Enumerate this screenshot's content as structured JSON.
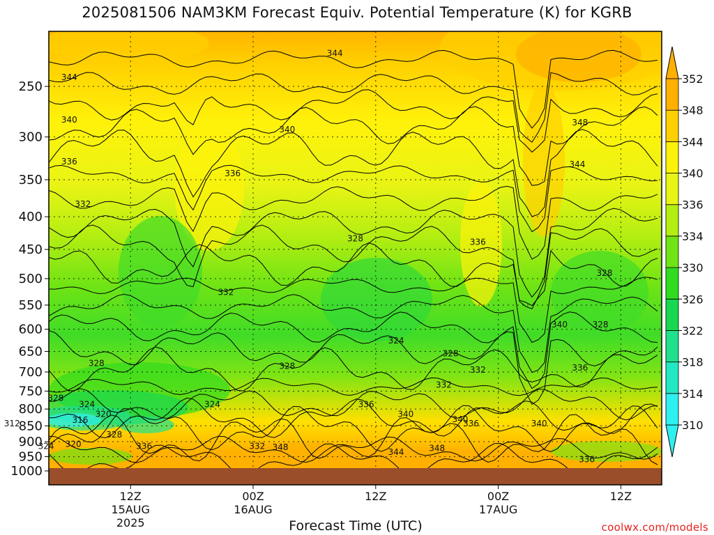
{
  "title": "2025081506 NAM3KM Forecast Equiv. Potential Temperature (K) for KGRB",
  "credit": "coolwx.com/models",
  "chart_data": {
    "type": "heatmap",
    "title": "2025081506 NAM3KM Forecast Equiv. Potential Temperature (K) for KGRB",
    "xlabel": "Forecast Time (UTC)",
    "ylabel": "",
    "variable": "Equiv. Potential Temperature (K)",
    "station": "KGRB",
    "model": "NAM3KM",
    "init": "2025081506",
    "y_scale": "log",
    "ylim": [
      1000,
      200
    ],
    "grid": true,
    "y_ticks": [
      250,
      300,
      350,
      400,
      450,
      500,
      550,
      600,
      650,
      700,
      750,
      800,
      850,
      900,
      950,
      1000
    ],
    "x_hours": [
      6,
      51
    ],
    "x_ticks": [
      {
        "hour": 12,
        "labels": [
          "12Z",
          "15AUG",
          "2025"
        ]
      },
      {
        "hour": 21,
        "labels": [
          "00Z",
          "16AUG"
        ]
      },
      {
        "hour": 30,
        "labels": [
          "12Z"
        ]
      },
      {
        "hour": 39,
        "labels": [
          "00Z",
          "17AUG"
        ]
      },
      {
        "hour": 48,
        "labels": [
          "12Z"
        ]
      }
    ],
    "colorbar": {
      "levels": [
        310,
        314,
        318,
        322,
        326,
        330,
        334,
        336,
        340,
        344,
        348,
        352
      ],
      "colors": [
        "#2ff0f0",
        "#22e8c4",
        "#20e08c",
        "#18d850",
        "#30dc20",
        "#70e414",
        "#b4ee12",
        "#e8f414",
        "#fff20a",
        "#ffd000",
        "#ffb000"
      ]
    },
    "contour_labels": [
      {
        "text": "344",
        "hour": 27.0,
        "hpa": 222
      },
      {
        "text": "344",
        "hour": 7.5,
        "hpa": 242
      },
      {
        "text": "340",
        "hour": 7.5,
        "hpa": 282
      },
      {
        "text": "336",
        "hour": 7.5,
        "hpa": 328
      },
      {
        "text": "332",
        "hour": 8.5,
        "hpa": 382
      },
      {
        "text": "336",
        "hour": 19.5,
        "hpa": 342
      },
      {
        "text": "340",
        "hour": 23.5,
        "hpa": 292
      },
      {
        "text": "348",
        "hour": 45.0,
        "hpa": 285
      },
      {
        "text": "344",
        "hour": 44.8,
        "hpa": 331
      },
      {
        "text": "328",
        "hour": 28.5,
        "hpa": 433
      },
      {
        "text": "336",
        "hour": 37.5,
        "hpa": 438
      },
      {
        "text": "328",
        "hour": 46.8,
        "hpa": 490
      },
      {
        "text": "332",
        "hour": 19.0,
        "hpa": 525
      },
      {
        "text": "340",
        "hour": 43.5,
        "hpa": 590
      },
      {
        "text": "328",
        "hour": 46.5,
        "hpa": 590
      },
      {
        "text": "324",
        "hour": 31.5,
        "hpa": 625
      },
      {
        "text": "328",
        "hour": 9.5,
        "hpa": 678
      },
      {
        "text": "328",
        "hour": 23.5,
        "hpa": 685
      },
      {
        "text": "328",
        "hour": 35.5,
        "hpa": 655
      },
      {
        "text": "332",
        "hour": 37.5,
        "hpa": 695
      },
      {
        "text": "336",
        "hour": 45.0,
        "hpa": 690
      },
      {
        "text": "332",
        "hour": 35.0,
        "hpa": 733
      },
      {
        "text": "328",
        "hour": 6.5,
        "hpa": 769
      },
      {
        "text": "324",
        "hour": 8.8,
        "hpa": 787
      },
      {
        "text": "320",
        "hour": 10.0,
        "hpa": 815
      },
      {
        "text": "316",
        "hour": 8.3,
        "hpa": 832
      },
      {
        "text": "312",
        "hour": 3.3,
        "hpa": 843
      },
      {
        "text": "324",
        "hour": 18.0,
        "hpa": 787
      },
      {
        "text": "336",
        "hour": 29.3,
        "hpa": 787
      },
      {
        "text": "340",
        "hour": 32.2,
        "hpa": 815
      },
      {
        "text": "340",
        "hour": 36.2,
        "hpa": 830
      },
      {
        "text": "336",
        "hour": 37.0,
        "hpa": 843
      },
      {
        "text": "340",
        "hour": 42.0,
        "hpa": 843
      },
      {
        "text": "328",
        "hour": 10.8,
        "hpa": 878
      },
      {
        "text": "320",
        "hour": 7.8,
        "hpa": 908
      },
      {
        "text": "324",
        "hour": 5.8,
        "hpa": 915
      },
      {
        "text": "336",
        "hour": 13.0,
        "hpa": 915
      },
      {
        "text": "332",
        "hour": 21.3,
        "hpa": 915
      },
      {
        "text": "348",
        "hour": 23.0,
        "hpa": 918
      },
      {
        "text": "348",
        "hour": 34.5,
        "hpa": 922
      },
      {
        "text": "344",
        "hour": 31.5,
        "hpa": 935
      },
      {
        "text": "336",
        "hour": 45.5,
        "hpa": 960
      }
    ]
  }
}
